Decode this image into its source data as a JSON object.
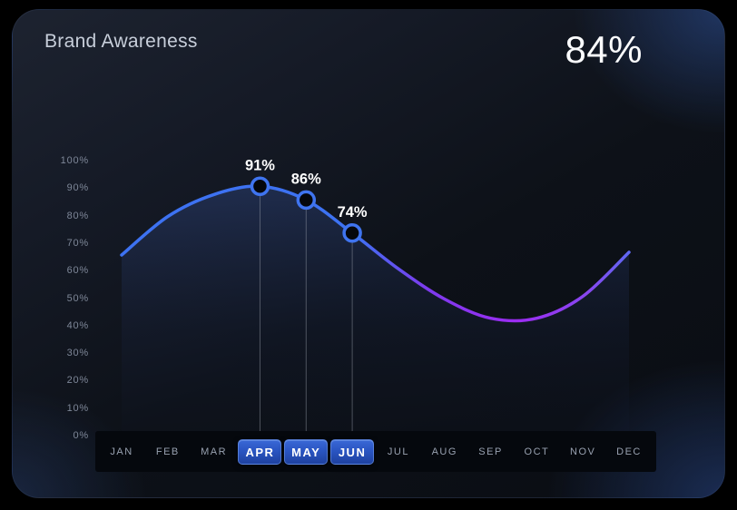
{
  "header": {
    "title": "Brand Awareness",
    "headline_value": "84%"
  },
  "chart_data": {
    "type": "area",
    "title": "Brand Awareness",
    "categories": [
      "JAN",
      "FEB",
      "MAR",
      "APR",
      "MAY",
      "JUN",
      "JUL",
      "AUG",
      "SEP",
      "OCT",
      "NOV",
      "DEC"
    ],
    "values": [
      66,
      80,
      88,
      91,
      86,
      74,
      61,
      50,
      43,
      43,
      51,
      67
    ],
    "ylim": [
      0,
      100
    ],
    "yticks": [
      "100%",
      "90%",
      "80%",
      "70%",
      "60%",
      "50%",
      "40%",
      "30%",
      "20%",
      "10%",
      "0%"
    ],
    "grid": false,
    "legend": "none",
    "highlighted": [
      {
        "month": "APR",
        "index": 3,
        "value": 91,
        "label": "91%"
      },
      {
        "month": "MAY",
        "index": 4,
        "value": 86,
        "label": "86%"
      },
      {
        "month": "JUN",
        "index": 5,
        "value": 74,
        "label": "74%"
      }
    ],
    "selected_months": [
      "APR",
      "MAY",
      "JUN"
    ],
    "colors": {
      "line_blue": "#3d72f2",
      "line_purple": "#9c2cf2",
      "line_tip_indigo": "#5f68f2",
      "marker_ring": "#3f74ef",
      "marker_fill": "#05070c",
      "area_top": "rgba(72,112,214,0.26)",
      "area_bottom": "rgba(30,45,95,0.03)",
      "drop_line": "#9aa0ab",
      "button_blue": "#2a55c2",
      "point_label": "#ffffff"
    }
  }
}
